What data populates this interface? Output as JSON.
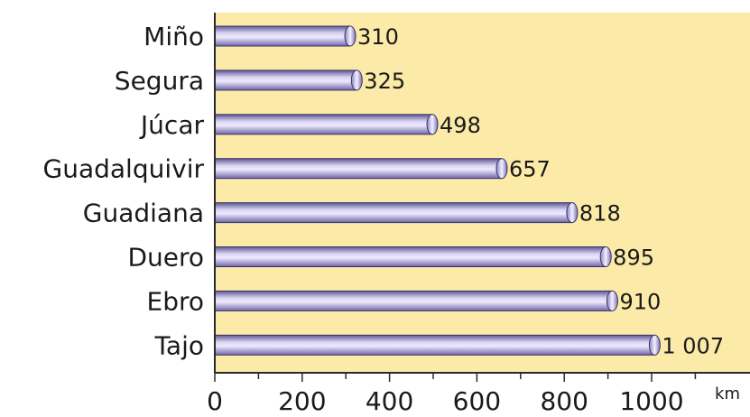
{
  "chart_data": {
    "type": "bar",
    "orientation": "horizontal",
    "categories": [
      "Miño",
      "Segura",
      "Júcar",
      "Guadalquivir",
      "Guadiana",
      "Duero",
      "Ebro",
      "Tajo"
    ],
    "values": [
      310,
      325,
      498,
      657,
      818,
      895,
      910,
      1007
    ],
    "value_labels": [
      "310",
      "325",
      "498",
      "657",
      "818",
      "895",
      "910",
      "1 007"
    ],
    "x_ticks": [
      0,
      200,
      400,
      600,
      800,
      1000
    ],
    "x_tick_labels": [
      "0",
      "200",
      "400",
      "600",
      "800",
      "1000"
    ],
    "xlim": [
      0,
      1200
    ],
    "x_unit": "km",
    "title": "",
    "xlabel": "",
    "ylabel": "",
    "grid": false,
    "legend": "none",
    "colors": {
      "plot_background": "#fbeaa8",
      "bar_fill": "#b9b0dd",
      "bar_dark": "#6e66a8",
      "bar_stroke": "#3a3468",
      "axis": "#2a2a2a"
    }
  }
}
